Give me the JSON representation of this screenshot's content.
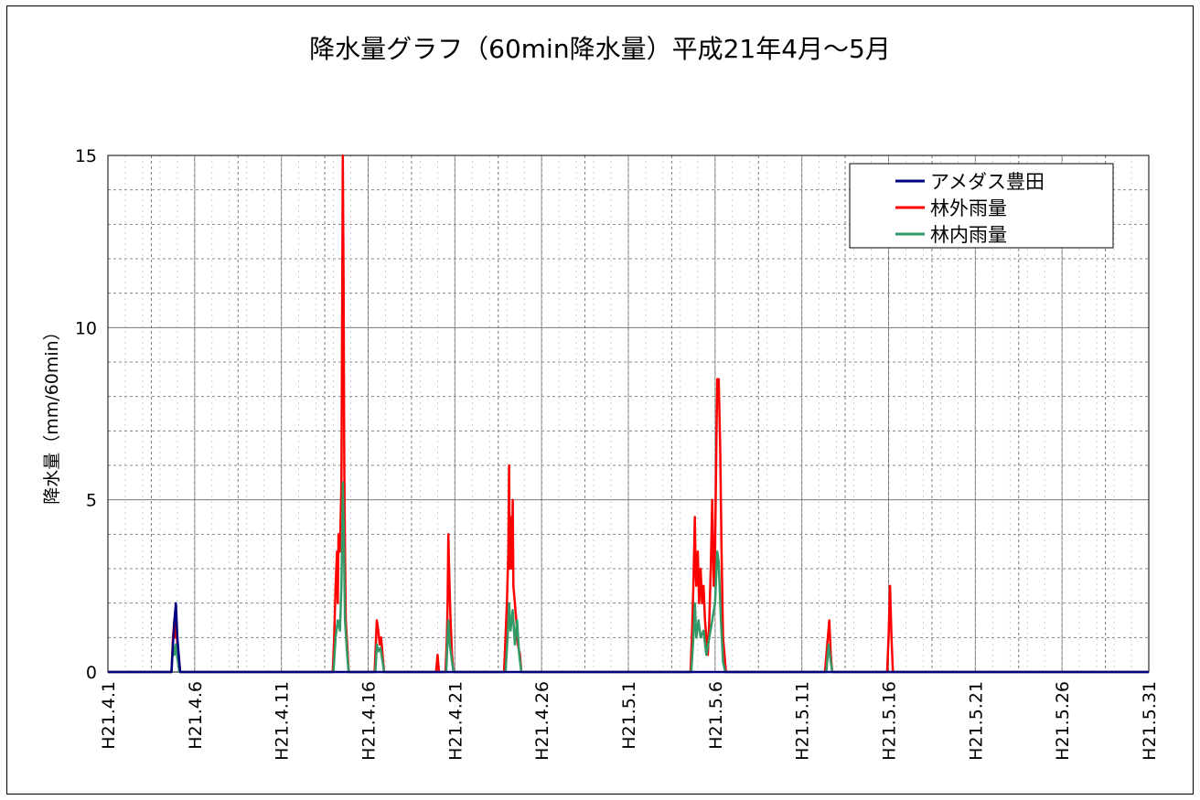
{
  "chart_data": {
    "type": "line",
    "title": "降水量グラフ（60min降水量）平成21年4月～5月",
    "xlabel": "",
    "ylabel": "降水量（mm/60min）",
    "ylim": [
      0,
      15
    ],
    "xlim": [
      "2009-04-01",
      "2009-05-31"
    ],
    "yticks": [
      0,
      5,
      10,
      15
    ],
    "xtick_labels": [
      "H21.4.1",
      "H21.4.6",
      "H21.4.11",
      "H21.4.16",
      "H21.4.21",
      "H21.4.26",
      "H21.5.1",
      "H21.5.6",
      "H21.5.11",
      "H21.5.16",
      "H21.5.21",
      "H21.5.26",
      "H21.5.31"
    ],
    "xtick_dates": [
      "2009-04-01",
      "2009-04-06",
      "2009-04-11",
      "2009-04-16",
      "2009-04-21",
      "2009-04-26",
      "2009-05-01",
      "2009-05-06",
      "2009-05-11",
      "2009-05-16",
      "2009-05-21",
      "2009-05-26",
      "2009-05-31"
    ],
    "grid": true,
    "legend_position": "top-right",
    "series": [
      {
        "name": "アメダス豊田",
        "color": "#000080",
        "points": [
          [
            "2009-04-04 16:00",
            0
          ],
          [
            "2009-04-04 18:00",
            0.8
          ],
          [
            "2009-04-04 20:00",
            1.5
          ],
          [
            "2009-04-04 22:00",
            2.0
          ],
          [
            "2009-04-05 00:00",
            1.0
          ],
          [
            "2009-04-05 02:00",
            0.5
          ],
          [
            "2009-04-05 04:00",
            0
          ]
        ]
      },
      {
        "name": "林外雨量",
        "color": "#ff0000",
        "points": [
          [
            "2009-04-04 16:00",
            0
          ],
          [
            "2009-04-04 18:00",
            1.0
          ],
          [
            "2009-04-04 20:00",
            1.5
          ],
          [
            "2009-04-04 21:00",
            1.0
          ],
          [
            "2009-04-04 22:00",
            1.6
          ],
          [
            "2009-04-05 00:00",
            0.8
          ],
          [
            "2009-04-05 02:00",
            0.4
          ],
          [
            "2009-04-05 04:00",
            0
          ],
          [
            "2009-04-13 23:00",
            0
          ],
          [
            "2009-04-14 01:00",
            1.0
          ],
          [
            "2009-04-14 03:00",
            2.5
          ],
          [
            "2009-04-14 05:00",
            3.5
          ],
          [
            "2009-04-14 06:00",
            2.0
          ],
          [
            "2009-04-14 07:00",
            4.0
          ],
          [
            "2009-04-14 09:00",
            3.5
          ],
          [
            "2009-04-14 11:00",
            5.5
          ],
          [
            "2009-04-14 12:00",
            10.5
          ],
          [
            "2009-04-14 13:00",
            15.0
          ],
          [
            "2009-04-14 14:00",
            11.5
          ],
          [
            "2009-04-14 15:00",
            6.0
          ],
          [
            "2009-04-14 16:00",
            3.5
          ],
          [
            "2009-04-14 17:00",
            1.5
          ],
          [
            "2009-04-14 19:00",
            0.8
          ],
          [
            "2009-04-14 21:00",
            0
          ],
          [
            "2009-04-16 09:00",
            0
          ],
          [
            "2009-04-16 11:00",
            1.0
          ],
          [
            "2009-04-16 12:00",
            1.5
          ],
          [
            "2009-04-16 14:00",
            1.2
          ],
          [
            "2009-04-16 16:00",
            0.8
          ],
          [
            "2009-04-16 18:00",
            1.0
          ],
          [
            "2009-04-16 20:00",
            0.5
          ],
          [
            "2009-04-16 22:00",
            0
          ],
          [
            "2009-04-19 22:00",
            0
          ],
          [
            "2009-04-20 00:00",
            0.5
          ],
          [
            "2009-04-20 02:00",
            0
          ],
          [
            "2009-04-20 11:00",
            0
          ],
          [
            "2009-04-20 13:00",
            1.0
          ],
          [
            "2009-04-20 14:00",
            2.0
          ],
          [
            "2009-04-20 15:00",
            4.0
          ],
          [
            "2009-04-20 16:00",
            3.0
          ],
          [
            "2009-04-20 18:00",
            1.5
          ],
          [
            "2009-04-20 20:00",
            0.5
          ],
          [
            "2009-04-20 22:00",
            0
          ],
          [
            "2009-04-23 20:00",
            0
          ],
          [
            "2009-04-23 22:00",
            1.0
          ],
          [
            "2009-04-24 00:00",
            2.0
          ],
          [
            "2009-04-24 02:00",
            3.5
          ],
          [
            "2009-04-24 03:00",
            6.0
          ],
          [
            "2009-04-24 04:00",
            3.0
          ],
          [
            "2009-04-24 06:00",
            4.5
          ],
          [
            "2009-04-24 07:00",
            3.0
          ],
          [
            "2009-04-24 08:00",
            5.0
          ],
          [
            "2009-04-24 09:00",
            2.5
          ],
          [
            "2009-04-24 11:00",
            2.0
          ],
          [
            "2009-04-24 13:00",
            1.5
          ],
          [
            "2009-04-24 15:00",
            0.8
          ],
          [
            "2009-04-24 18:00",
            0.5
          ],
          [
            "2009-04-24 20:00",
            0
          ],
          [
            "2009-05-04 14:00",
            0
          ],
          [
            "2009-05-04 16:00",
            1.0
          ],
          [
            "2009-05-04 18:00",
            2.5
          ],
          [
            "2009-05-04 20:00",
            4.5
          ],
          [
            "2009-05-04 21:00",
            3.0
          ],
          [
            "2009-05-04 22:00",
            2.5
          ],
          [
            "2009-05-05 00:00",
            3.5
          ],
          [
            "2009-05-05 02:00",
            2.0
          ],
          [
            "2009-05-05 04:00",
            3.0
          ],
          [
            "2009-05-05 06:00",
            2.0
          ],
          [
            "2009-05-05 08:00",
            2.5
          ],
          [
            "2009-05-05 10:00",
            1.5
          ],
          [
            "2009-05-05 12:00",
            1.0
          ],
          [
            "2009-05-05 14:00",
            0.5
          ],
          [
            "2009-05-05 16:00",
            1.5
          ],
          [
            "2009-05-05 18:00",
            3.0
          ],
          [
            "2009-05-05 20:00",
            5.0
          ],
          [
            "2009-05-05 22:00",
            2.5
          ],
          [
            "2009-05-06 00:00",
            3.5
          ],
          [
            "2009-05-06 02:00",
            7.0
          ],
          [
            "2009-05-06 03:00",
            8.5
          ],
          [
            "2009-05-06 05:00",
            8.5
          ],
          [
            "2009-05-06 06:00",
            7.5
          ],
          [
            "2009-05-06 07:00",
            6.5
          ],
          [
            "2009-05-06 09:00",
            3.5
          ],
          [
            "2009-05-06 11:00",
            1.0
          ],
          [
            "2009-05-06 13:00",
            0.5
          ],
          [
            "2009-05-06 15:00",
            0
          ],
          [
            "2009-05-12 08:00",
            0
          ],
          [
            "2009-05-12 10:00",
            0.5
          ],
          [
            "2009-05-12 12:00",
            1.0
          ],
          [
            "2009-05-12 14:00",
            1.5
          ],
          [
            "2009-05-12 16:00",
            0.5
          ],
          [
            "2009-05-12 18:00",
            0
          ],
          [
            "2009-05-15 22:00",
            0
          ],
          [
            "2009-05-16 00:00",
            1.0
          ],
          [
            "2009-05-16 02:00",
            2.5
          ],
          [
            "2009-05-16 04:00",
            1.0
          ],
          [
            "2009-05-16 06:00",
            0
          ]
        ]
      },
      {
        "name": "林内雨量",
        "color": "#339966",
        "points": [
          [
            "2009-04-04 16:00",
            0
          ],
          [
            "2009-04-04 18:00",
            0.8
          ],
          [
            "2009-04-04 20:00",
            0.5
          ],
          [
            "2009-04-04 22:00",
            0.8
          ],
          [
            "2009-04-05 00:00",
            0.4
          ],
          [
            "2009-04-05 03:00",
            0
          ],
          [
            "2009-04-14 00:00",
            0
          ],
          [
            "2009-04-14 03:00",
            1.0
          ],
          [
            "2009-04-14 06:00",
            1.5
          ],
          [
            "2009-04-14 09:00",
            1.2
          ],
          [
            "2009-04-14 11:00",
            2.5
          ],
          [
            "2009-04-14 12:00",
            4.0
          ],
          [
            "2009-04-14 13:00",
            5.5
          ],
          [
            "2009-04-14 14:00",
            4.5
          ],
          [
            "2009-04-14 16:00",
            1.5
          ],
          [
            "2009-04-14 19:00",
            0.5
          ],
          [
            "2009-04-14 21:00",
            0
          ],
          [
            "2009-04-16 10:00",
            0
          ],
          [
            "2009-04-16 12:00",
            0.8
          ],
          [
            "2009-04-16 14:00",
            0.6
          ],
          [
            "2009-04-16 17:00",
            0.7
          ],
          [
            "2009-04-16 20:00",
            0.3
          ],
          [
            "2009-04-16 22:00",
            0
          ],
          [
            "2009-04-20 12:00",
            0
          ],
          [
            "2009-04-20 14:00",
            1.0
          ],
          [
            "2009-04-20 15:00",
            1.5
          ],
          [
            "2009-04-20 17:00",
            0.8
          ],
          [
            "2009-04-20 20:00",
            0.3
          ],
          [
            "2009-04-20 22:00",
            0
          ],
          [
            "2009-04-23 22:00",
            0
          ],
          [
            "2009-04-24 01:00",
            1.0
          ],
          [
            "2009-04-24 03:00",
            2.0
          ],
          [
            "2009-04-24 05:00",
            1.2
          ],
          [
            "2009-04-24 08:00",
            1.8
          ],
          [
            "2009-04-24 11:00",
            0.8
          ],
          [
            "2009-04-24 14:00",
            1.5
          ],
          [
            "2009-04-24 17:00",
            0.5
          ],
          [
            "2009-04-24 20:00",
            0
          ],
          [
            "2009-05-04 15:00",
            0
          ],
          [
            "2009-05-04 18:00",
            1.0
          ],
          [
            "2009-05-04 20:00",
            2.0
          ],
          [
            "2009-05-04 22:00",
            1.0
          ],
          [
            "2009-05-05 01:00",
            1.5
          ],
          [
            "2009-05-05 04:00",
            1.0
          ],
          [
            "2009-05-05 08:00",
            1.2
          ],
          [
            "2009-05-05 12:00",
            0.5
          ],
          [
            "2009-05-05 16:00",
            1.0
          ],
          [
            "2009-05-05 20:00",
            1.5
          ],
          [
            "2009-05-06 00:00",
            2.0
          ],
          [
            "2009-05-06 03:00",
            3.5
          ],
          [
            "2009-05-06 05:00",
            3.2
          ],
          [
            "2009-05-06 08:00",
            1.5
          ],
          [
            "2009-05-06 11:00",
            0.3
          ],
          [
            "2009-05-06 14:00",
            0
          ],
          [
            "2009-05-12 10:00",
            0
          ],
          [
            "2009-05-12 13:00",
            0.8
          ],
          [
            "2009-05-12 16:00",
            0.3
          ],
          [
            "2009-05-12 18:00",
            0
          ]
        ]
      }
    ]
  }
}
